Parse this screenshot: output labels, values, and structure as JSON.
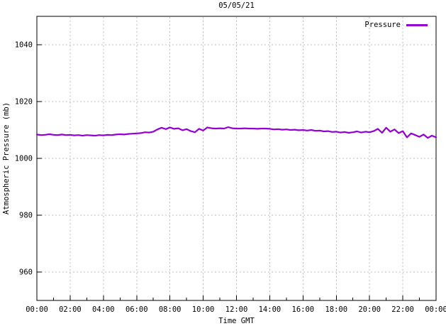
{
  "title": "05/05/21",
  "chart_data": {
    "type": "line",
    "title": "05/05/21",
    "xlabel": "Time GMT",
    "ylabel": "Atmospheric Pressure (mb)",
    "xlim_hours": [
      0,
      24
    ],
    "ylim": [
      950,
      1050
    ],
    "grid": true,
    "grid_color": "#bcbcbc",
    "background_color": "#ffffff",
    "x_tick_hours": [
      0,
      2,
      4,
      6,
      8,
      10,
      12,
      14,
      16,
      18,
      20,
      22,
      24
    ],
    "x_tick_labels": [
      "00:00",
      "02:00",
      "04:00",
      "06:00",
      "08:00",
      "10:00",
      "12:00",
      "14:00",
      "16:00",
      "18:00",
      "20:00",
      "22:00",
      "00:00"
    ],
    "x_minor_tick_hours": [
      1,
      3,
      5,
      7,
      9,
      11,
      13,
      15,
      17,
      19,
      21,
      23
    ],
    "y_tick_values": [
      960,
      980,
      1000,
      1020,
      1040
    ],
    "y_tick_labels": [
      "960",
      "980",
      "1000",
      "1020",
      "1040"
    ],
    "legend": {
      "position": "top-right",
      "entries": [
        {
          "label": "Pressure",
          "color": "#9400D3"
        }
      ]
    },
    "series": [
      {
        "name": "Pressure",
        "color": "#9400D3",
        "x_start_hour": 0,
        "x_step_hours": 0.25,
        "values": [
          1008.4,
          1008.2,
          1008.3,
          1008.5,
          1008.3,
          1008.2,
          1008.4,
          1008.2,
          1008.3,
          1008.1,
          1008.2,
          1008.0,
          1008.2,
          1008.1,
          1008.0,
          1008.2,
          1008.1,
          1008.3,
          1008.2,
          1008.4,
          1008.5,
          1008.4,
          1008.6,
          1008.7,
          1008.8,
          1008.9,
          1009.2,
          1009.1,
          1009.4,
          1010.2,
          1010.8,
          1010.3,
          1010.9,
          1010.4,
          1010.6,
          1009.9,
          1010.3,
          1009.6,
          1009.2,
          1010.4,
          1009.8,
          1010.9,
          1010.6,
          1010.5,
          1010.6,
          1010.5,
          1011.0,
          1010.6,
          1010.5,
          1010.5,
          1010.6,
          1010.5,
          1010.5,
          1010.4,
          1010.5,
          1010.5,
          1010.4,
          1010.2,
          1010.3,
          1010.1,
          1010.2,
          1010.0,
          1010.1,
          1009.9,
          1010.0,
          1009.8,
          1010.0,
          1009.7,
          1009.8,
          1009.5,
          1009.6,
          1009.3,
          1009.4,
          1009.1,
          1009.3,
          1009.0,
          1009.2,
          1009.5,
          1009.1,
          1009.4,
          1009.2,
          1009.6,
          1010.4,
          1009.0,
          1010.8,
          1009.4,
          1010.2,
          1008.9,
          1009.6,
          1007.4,
          1008.8,
          1008.2,
          1007.6,
          1008.4,
          1007.2,
          1008.0,
          1007.4
        ]
      }
    ]
  }
}
